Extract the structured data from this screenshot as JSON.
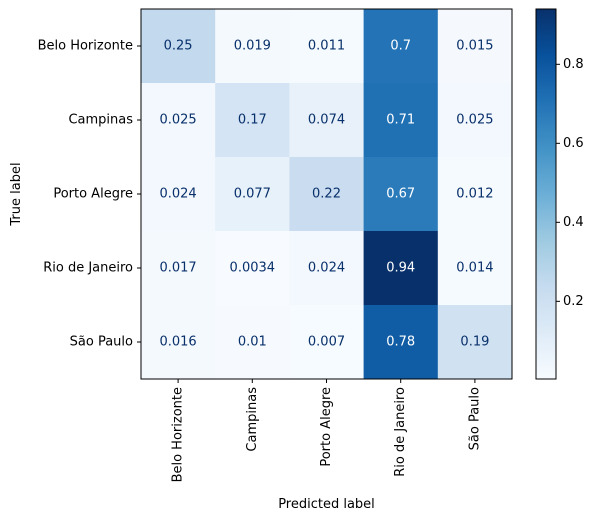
{
  "chart_data": {
    "type": "heatmap",
    "title": "",
    "xlabel": "Predicted label",
    "ylabel": "True label",
    "rows": [
      "Belo Horizonte",
      "Campinas",
      "Porto Alegre",
      "Rio de Janeiro",
      "São Paulo"
    ],
    "cols": [
      "Belo Horizonte",
      "Campinas",
      "Porto Alegre",
      "Rio de Janeiro",
      "São Paulo"
    ],
    "values": [
      [
        0.25,
        0.019,
        0.011,
        0.7,
        0.015
      ],
      [
        0.025,
        0.17,
        0.074,
        0.71,
        0.025
      ],
      [
        0.024,
        0.077,
        0.22,
        0.67,
        0.012
      ],
      [
        0.017,
        0.0034,
        0.024,
        0.94,
        0.014
      ],
      [
        0.016,
        0.01,
        0.007,
        0.78,
        0.19
      ]
    ],
    "labels": [
      [
        "0.25",
        "0.019",
        "0.011",
        "0.7",
        "0.015"
      ],
      [
        "0.025",
        "0.17",
        "0.074",
        "0.71",
        "0.025"
      ],
      [
        "0.024",
        "0.077",
        "0.22",
        "0.67",
        "0.012"
      ],
      [
        "0.017",
        "0.0034",
        "0.024",
        "0.94",
        "0.014"
      ],
      [
        "0.016",
        "0.01",
        "0.007",
        "0.78",
        "0.19"
      ]
    ],
    "colormap": "Blues",
    "vmin": 0.0034,
    "vmax": 0.94,
    "colorbar": {
      "ticks": [
        0.2,
        0.4,
        0.6,
        0.8
      ],
      "tick_labels": [
        "0.2",
        "0.4",
        "0.6",
        "0.8"
      ]
    },
    "grid": false,
    "legend": "colorbar-right"
  }
}
